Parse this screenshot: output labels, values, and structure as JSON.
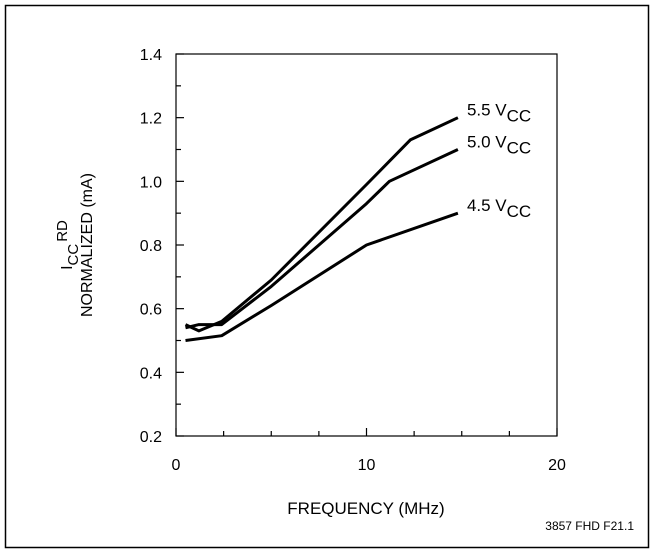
{
  "chart_data": {
    "type": "line",
    "title": "",
    "xlabel": "FREQUENCY (MHz)",
    "ylabel": {
      "line1_main": "I",
      "line1_sub": "CC",
      "line1_sup": "RD",
      "line2": "NORMALIZED (mA)"
    },
    "xlim": [
      0,
      20
    ],
    "ylim": [
      0.2,
      1.4
    ],
    "x_ticks": [
      0,
      10,
      20
    ],
    "x_tick_labels": [
      "0",
      "10",
      "20"
    ],
    "x_minor_ticks": [
      2.5,
      5,
      7.5,
      12.5,
      15,
      17.5
    ],
    "y_ticks": [
      0.2,
      0.4,
      0.6,
      0.8,
      1.0,
      1.2,
      1.4
    ],
    "y_tick_labels": [
      "0.2",
      "0.4",
      "0.6",
      "0.8",
      "1.0",
      "1.2",
      "1.4"
    ],
    "y_minor_ticks": [
      0.3,
      0.5,
      0.7,
      0.9,
      1.1,
      1.3
    ],
    "grid": false,
    "legend": "direct labels at right end of each line",
    "series": [
      {
        "name": "5.5 VCC",
        "label_main": "5.5 V",
        "label_sub": "CC",
        "x": [
          0.5,
          1.2,
          2.4,
          5.0,
          10.0,
          12.3,
          14.8
        ],
        "y": [
          0.55,
          0.53,
          0.56,
          0.69,
          0.99,
          1.13,
          1.2
        ]
      },
      {
        "name": "5.0 VCC",
        "label_main": "5.0 V",
        "label_sub": "CC",
        "x": [
          0.5,
          1.2,
          2.4,
          5.0,
          10.0,
          11.2,
          14.8
        ],
        "y": [
          0.54,
          0.55,
          0.55,
          0.67,
          0.93,
          1.0,
          1.1
        ]
      },
      {
        "name": "4.5 VCC",
        "label_main": "4.5 V",
        "label_sub": "CC",
        "x": [
          0.5,
          2.4,
          5.0,
          10.0,
          14.8
        ],
        "y": [
          0.5,
          0.515,
          0.61,
          0.8,
          0.9
        ]
      }
    ],
    "annotations": [
      "3857 FHD F21.1"
    ]
  }
}
